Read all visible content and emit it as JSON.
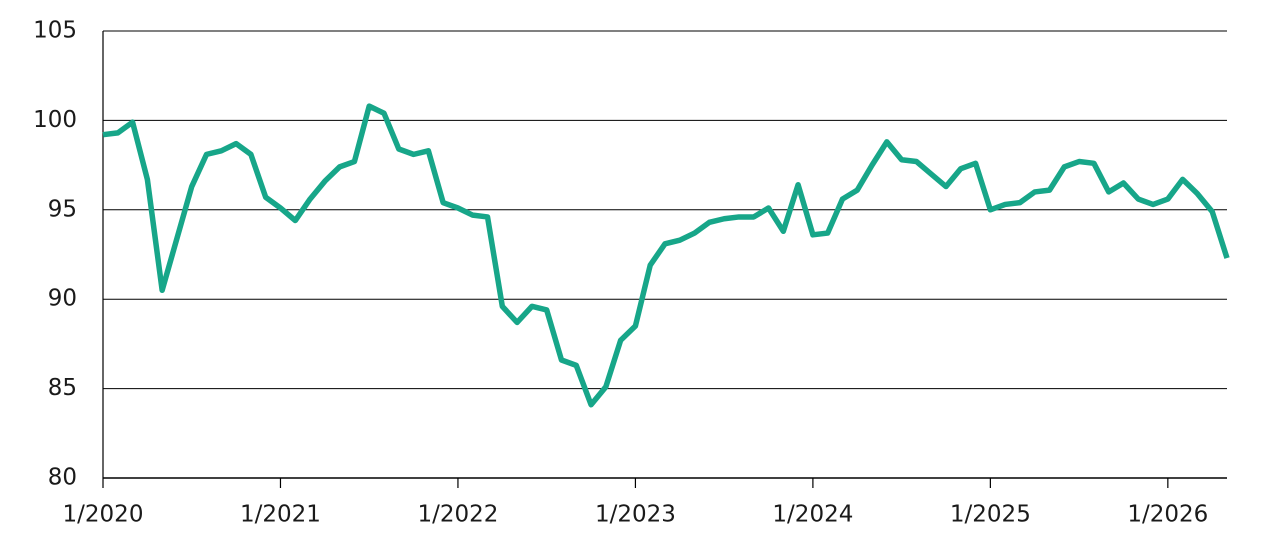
{
  "chart_data": {
    "type": "line",
    "x": [
      "2020-01",
      "2020-02",
      "2020-03",
      "2020-04",
      "2020-05",
      "2020-06",
      "2020-07",
      "2020-08",
      "2020-09",
      "2020-10",
      "2020-11",
      "2020-12",
      "2021-01",
      "2021-02",
      "2021-03",
      "2021-04",
      "2021-05",
      "2021-06",
      "2021-07",
      "2021-08",
      "2021-09",
      "2021-10",
      "2021-11",
      "2021-12",
      "2022-01",
      "2022-02",
      "2022-03",
      "2022-04",
      "2022-05",
      "2022-06",
      "2022-07",
      "2022-08",
      "2022-09",
      "2022-10",
      "2022-11",
      "2022-12",
      "2023-01",
      "2023-02",
      "2023-03",
      "2023-04",
      "2023-05",
      "2023-06",
      "2023-07",
      "2023-08",
      "2023-09",
      "2023-10",
      "2023-11",
      "2023-12",
      "2024-01",
      "2024-02",
      "2024-03",
      "2024-04",
      "2024-05",
      "2024-06",
      "2024-07",
      "2024-08",
      "2024-09",
      "2024-10",
      "2024-11",
      "2024-12",
      "2025-01",
      "2025-02",
      "2025-03",
      "2025-04",
      "2025-05",
      "2025-06",
      "2025-07",
      "2025-08",
      "2025-09",
      "2025-10",
      "2025-11",
      "2025-12",
      "2026-01",
      "2026-02",
      "2026-03",
      "2026-04",
      "2026-05"
    ],
    "series": [
      {
        "color": "#17a689",
        "values": [
          99.2,
          99.3,
          99.9,
          96.7,
          90.5,
          93.4,
          96.3,
          98.1,
          98.3,
          98.7,
          98.1,
          95.7,
          95.1,
          94.4,
          95.6,
          96.6,
          97.4,
          97.7,
          100.8,
          100.4,
          98.4,
          98.1,
          98.3,
          95.4,
          95.1,
          94.7,
          94.6,
          89.6,
          88.7,
          89.6,
          89.4,
          86.6,
          86.3,
          84.1,
          85.1,
          87.7,
          88.5,
          91.9,
          93.1,
          93.3,
          93.7,
          94.3,
          94.5,
          94.6,
          94.6,
          95.1,
          93.8,
          96.4,
          93.6,
          93.7,
          95.6,
          96.1,
          97.5,
          98.8,
          97.8,
          97.7,
          97.0,
          96.3,
          97.3,
          97.6,
          95.0,
          95.3,
          95.4,
          96.0,
          96.1,
          97.4,
          97.7,
          97.6,
          96.0,
          96.5,
          95.6,
          95.3,
          95.6,
          96.7,
          95.9,
          94.9,
          92.3
        ]
      }
    ],
    "xlim": [
      "2020-01",
      "2026-05"
    ],
    "xticks": [
      {
        "value": "2020-01",
        "label": "1/2020"
      },
      {
        "value": "2021-01",
        "label": "1/2021"
      },
      {
        "value": "2022-01",
        "label": "1/2022"
      },
      {
        "value": "2023-01",
        "label": "1/2023"
      },
      {
        "value": "2024-01",
        "label": "1/2024"
      },
      {
        "value": "2025-01",
        "label": "1/2025"
      },
      {
        "value": "2026-01",
        "label": "1/2026"
      }
    ],
    "ylim": [
      80,
      105
    ],
    "yticks": [
      80,
      85,
      90,
      95,
      100,
      105
    ],
    "grid": true
  }
}
